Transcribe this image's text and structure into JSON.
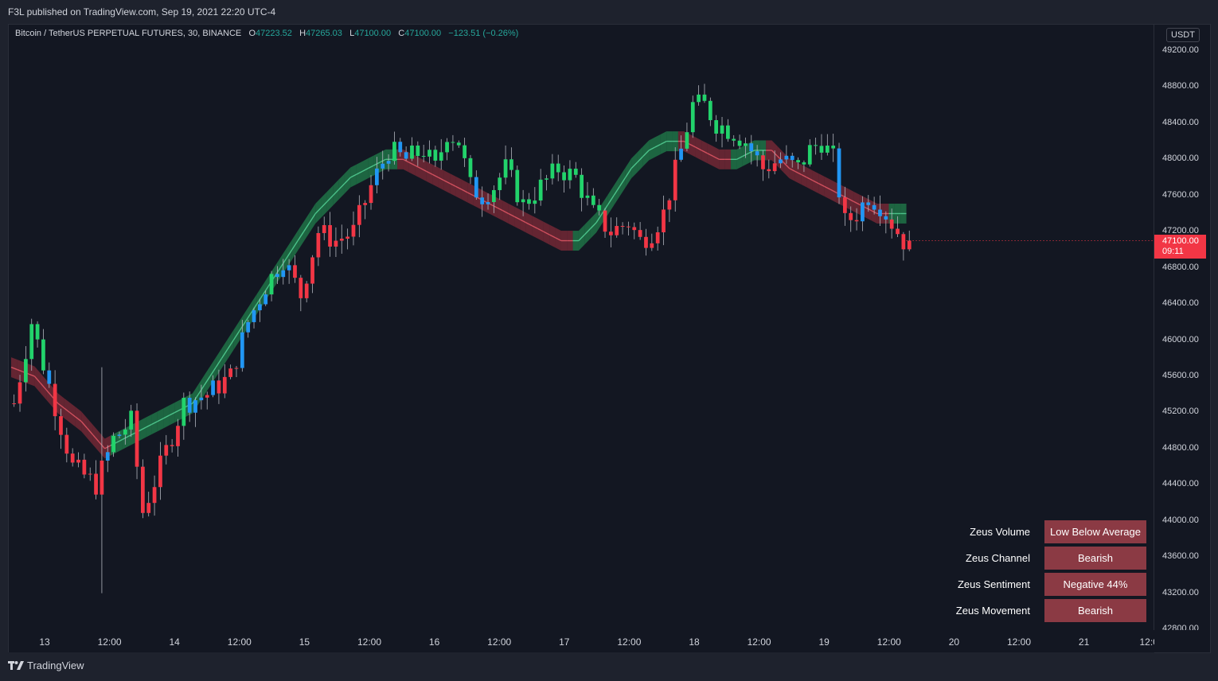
{
  "header": {
    "publisher": "F3L published on TradingView.com, Sep 19, 2021 22:20 UTC-4"
  },
  "legend": {
    "symbol": "Bitcoin / TetherUS PERPETUAL FUTURES, 30, BINANCE",
    "o_label": "O",
    "o_value": "47223.52",
    "h_label": "H",
    "h_value": "47265.03",
    "l_label": "L",
    "l_value": "47100.00",
    "c_label": "C",
    "c_value": "47100.00",
    "change": "−123.51 (−0.26%)"
  },
  "price_axis": {
    "currency": "USDT",
    "labels": [
      "49200.00",
      "48800.00",
      "48400.00",
      "48000.00",
      "47600.00",
      "47200.00",
      "46800.00",
      "46400.00",
      "46000.00",
      "45600.00",
      "45200.00",
      "44800.00",
      "44400.00",
      "44000.00",
      "43600.00",
      "43200.00",
      "42800.00"
    ],
    "last_price": "47100.00",
    "countdown": "09:11"
  },
  "time_axis": {
    "labels": [
      "13",
      "12:00",
      "14",
      "12:00",
      "15",
      "12:00",
      "16",
      "12:00",
      "17",
      "12:00",
      "18",
      "12:00",
      "19",
      "12:00",
      "20",
      "12:00",
      "21",
      "12:0"
    ]
  },
  "zeus": [
    {
      "label": "Zeus Volume",
      "value": "Low Below Average"
    },
    {
      "label": "Zeus Channel",
      "value": "Bearish"
    },
    {
      "label": "Zeus Sentiment",
      "value": "Negative 44%"
    },
    {
      "label": "Zeus Movement",
      "value": "Bearish"
    }
  ],
  "brand": {
    "name": "TradingView"
  },
  "colors": {
    "up": "#22d36b",
    "down": "#f23645",
    "neutral": "#2196f3",
    "band_up": "#26a65b",
    "band_down": "#a83240",
    "zeus_cell": "#8b3a44"
  },
  "chart_data": {
    "type": "candlestick",
    "interval": "30",
    "ylim": [
      42800,
      49200
    ],
    "close_path": [
      [
        0,
        45300
      ],
      [
        3,
        46200
      ],
      [
        6,
        45500
      ],
      [
        10,
        44600
      ],
      [
        14,
        44400
      ],
      [
        17,
        44900
      ],
      [
        20,
        45100
      ],
      [
        22,
        44100
      ],
      [
        25,
        44600
      ],
      [
        29,
        45300
      ],
      [
        33,
        45400
      ],
      [
        37,
        45600
      ],
      [
        40,
        46200
      ],
      [
        43,
        46600
      ],
      [
        46,
        46900
      ],
      [
        49,
        46500
      ],
      [
        52,
        47200
      ],
      [
        55,
        47100
      ],
      [
        58,
        47200
      ],
      [
        61,
        47700
      ],
      [
        64,
        48100
      ],
      [
        67,
        48000
      ],
      [
        70,
        48100
      ],
      [
        72,
        47900
      ],
      [
        74,
        48300
      ],
      [
        76,
        48200
      ],
      [
        78,
        47700
      ],
      [
        80,
        47600
      ],
      [
        82,
        47700
      ],
      [
        84,
        47900
      ],
      [
        87,
        47500
      ],
      [
        90,
        47700
      ],
      [
        93,
        47900
      ],
      [
        96,
        47800
      ],
      [
        99,
        47400
      ],
      [
        102,
        47200
      ],
      [
        105,
        47300
      ],
      [
        107,
        47100
      ],
      [
        109,
        47200
      ],
      [
        111,
        47400
      ],
      [
        114,
        48100
      ],
      [
        116,
        48600
      ],
      [
        118,
        48600
      ],
      [
        120,
        48400
      ],
      [
        123,
        48300
      ],
      [
        125,
        48200
      ],
      [
        128,
        47900
      ],
      [
        131,
        48000
      ],
      [
        134,
        47900
      ],
      [
        136,
        48100
      ],
      [
        138,
        48200
      ],
      [
        140,
        48000
      ],
      [
        142,
        47300
      ],
      [
        144,
        47400
      ],
      [
        146,
        47600
      ],
      [
        148,
        47500
      ],
      [
        150,
        47300
      ],
      [
        152,
        47100
      ],
      [
        153,
        47100
      ]
    ],
    "band_path": [
      [
        0,
        45700
      ],
      [
        4,
        45600
      ],
      [
        8,
        45300
      ],
      [
        12,
        45100
      ],
      [
        16,
        44800
      ],
      [
        19,
        44900
      ],
      [
        22,
        45000
      ],
      [
        25,
        45100
      ],
      [
        28,
        45200
      ],
      [
        31,
        45300
      ],
      [
        34,
        45600
      ],
      [
        37,
        45900
      ],
      [
        40,
        46200
      ],
      [
        43,
        46500
      ],
      [
        46,
        46800
      ],
      [
        49,
        47100
      ],
      [
        52,
        47400
      ],
      [
        55,
        47600
      ],
      [
        58,
        47800
      ],
      [
        61,
        47900
      ],
      [
        64,
        48000
      ],
      [
        67,
        48000
      ],
      [
        70,
        47900
      ],
      [
        73,
        47800
      ],
      [
        76,
        47700
      ],
      [
        79,
        47600
      ],
      [
        82,
        47500
      ],
      [
        85,
        47400
      ],
      [
        88,
        47300
      ],
      [
        91,
        47200
      ],
      [
        94,
        47100
      ],
      [
        97,
        47100
      ],
      [
        100,
        47300
      ],
      [
        103,
        47600
      ],
      [
        106,
        47900
      ],
      [
        109,
        48100
      ],
      [
        112,
        48200
      ],
      [
        115,
        48200
      ],
      [
        118,
        48100
      ],
      [
        121,
        48000
      ],
      [
        124,
        48000
      ],
      [
        127,
        48100
      ],
      [
        130,
        48100
      ],
      [
        133,
        47900
      ],
      [
        136,
        47800
      ],
      [
        139,
        47700
      ],
      [
        142,
        47600
      ],
      [
        145,
        47500
      ],
      [
        148,
        47400
      ],
      [
        151,
        47400
      ],
      [
        153,
        47400
      ]
    ]
  }
}
